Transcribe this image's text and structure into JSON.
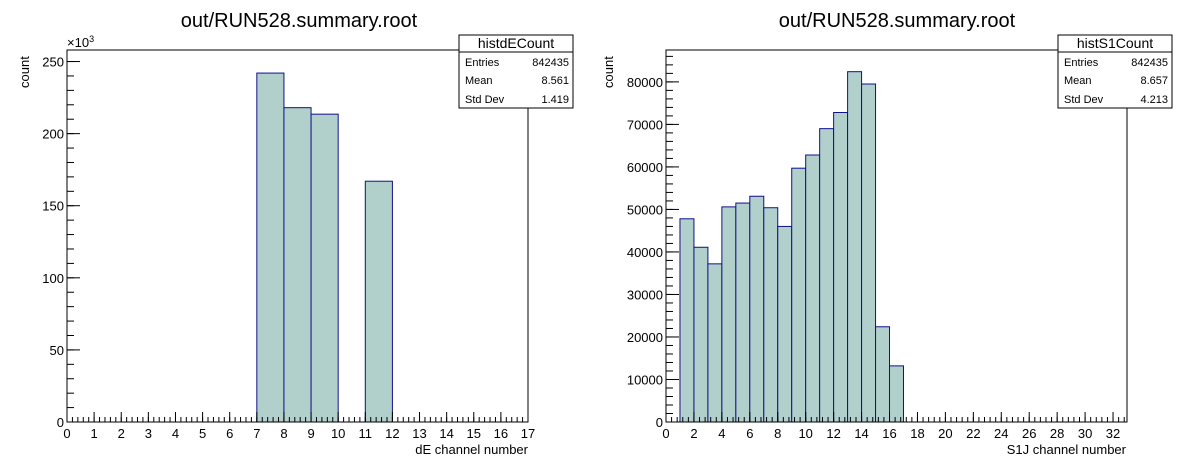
{
  "chart_data": [
    {
      "type": "bar",
      "title": "out/RUN528.summary.root",
      "xlabel": "dE channel number",
      "ylabel": "count",
      "y_multiplier": "×10",
      "y_multiplier_exp": "3",
      "xlim": [
        0,
        17
      ],
      "ylim": [
        0,
        258
      ],
      "x_ticks": [
        0,
        1,
        2,
        3,
        4,
        5,
        6,
        7,
        8,
        9,
        10,
        11,
        12,
        13,
        14,
        15,
        16,
        17
      ],
      "x_tick_labels": [
        "0",
        "1",
        "2",
        "3",
        "4",
        "5",
        "6",
        "7",
        "8",
        "9",
        "10",
        "11",
        "12",
        "13",
        "14",
        "15",
        "16",
        "17"
      ],
      "y_ticks": [
        0,
        50,
        100,
        150,
        200,
        250
      ],
      "y_tick_labels": [
        "0",
        "50",
        "100",
        "150",
        "200",
        "250"
      ],
      "bins": [
        {
          "x0": 7,
          "x1": 8,
          "value": 242
        },
        {
          "x0": 8,
          "x1": 9,
          "value": 218
        },
        {
          "x0": 9,
          "x1": 10,
          "value": 213.5
        },
        {
          "x0": 11,
          "x1": 12,
          "value": 167
        }
      ],
      "fill_color": "#b1d0cb",
      "line_color": "#10108a",
      "stats": {
        "name": "histdECount",
        "rows": [
          {
            "label": "Entries",
            "value": "842435"
          },
          {
            "label": "Mean",
            "value": "8.561"
          },
          {
            "label": "Std Dev",
            "value": "1.419"
          }
        ]
      }
    },
    {
      "type": "bar",
      "title": "out/RUN528.summary.root",
      "xlabel": "S1J channel number",
      "ylabel": "count",
      "xlim": [
        0,
        33
      ],
      "ylim": [
        0,
        87500
      ],
      "x_ticks": [
        0,
        2,
        4,
        6,
        8,
        10,
        12,
        14,
        16,
        18,
        20,
        22,
        24,
        26,
        28,
        30,
        32
      ],
      "x_tick_labels": [
        "0",
        "2",
        "4",
        "6",
        "8",
        "10",
        "12",
        "14",
        "16",
        "18",
        "20",
        "22",
        "24",
        "26",
        "28",
        "30",
        "32"
      ],
      "y_ticks": [
        0,
        10000,
        20000,
        30000,
        40000,
        50000,
        60000,
        70000,
        80000
      ],
      "y_tick_labels": [
        "0",
        "10000",
        "20000",
        "30000",
        "40000",
        "50000",
        "60000",
        "70000",
        "80000"
      ],
      "bins": [
        {
          "x0": 1,
          "x1": 2,
          "value": 47800
        },
        {
          "x0": 2,
          "x1": 3,
          "value": 41100
        },
        {
          "x0": 3,
          "x1": 4,
          "value": 37200
        },
        {
          "x0": 4,
          "x1": 5,
          "value": 50600
        },
        {
          "x0": 5,
          "x1": 6,
          "value": 51500
        },
        {
          "x0": 6,
          "x1": 7,
          "value": 53100
        },
        {
          "x0": 7,
          "x1": 8,
          "value": 50400
        },
        {
          "x0": 8,
          "x1": 9,
          "value": 46000
        },
        {
          "x0": 9,
          "x1": 10,
          "value": 59700
        },
        {
          "x0": 10,
          "x1": 11,
          "value": 62800
        },
        {
          "x0": 11,
          "x1": 12,
          "value": 69000
        },
        {
          "x0": 12,
          "x1": 13,
          "value": 72800
        },
        {
          "x0": 13,
          "x1": 14,
          "value": 82400
        },
        {
          "x0": 14,
          "x1": 15,
          "value": 79500
        },
        {
          "x0": 15,
          "x1": 16,
          "value": 22400
        },
        {
          "x0": 16,
          "x1": 17,
          "value": 13200
        }
      ],
      "fill_color": "#b1d0cb",
      "line_color": "#10108a",
      "stats": {
        "name": "histS1Count",
        "rows": [
          {
            "label": "Entries",
            "value": "842435"
          },
          {
            "label": "Mean",
            "value": "8.657"
          },
          {
            "label": "Std Dev",
            "value": "4.213"
          }
        ]
      }
    }
  ]
}
